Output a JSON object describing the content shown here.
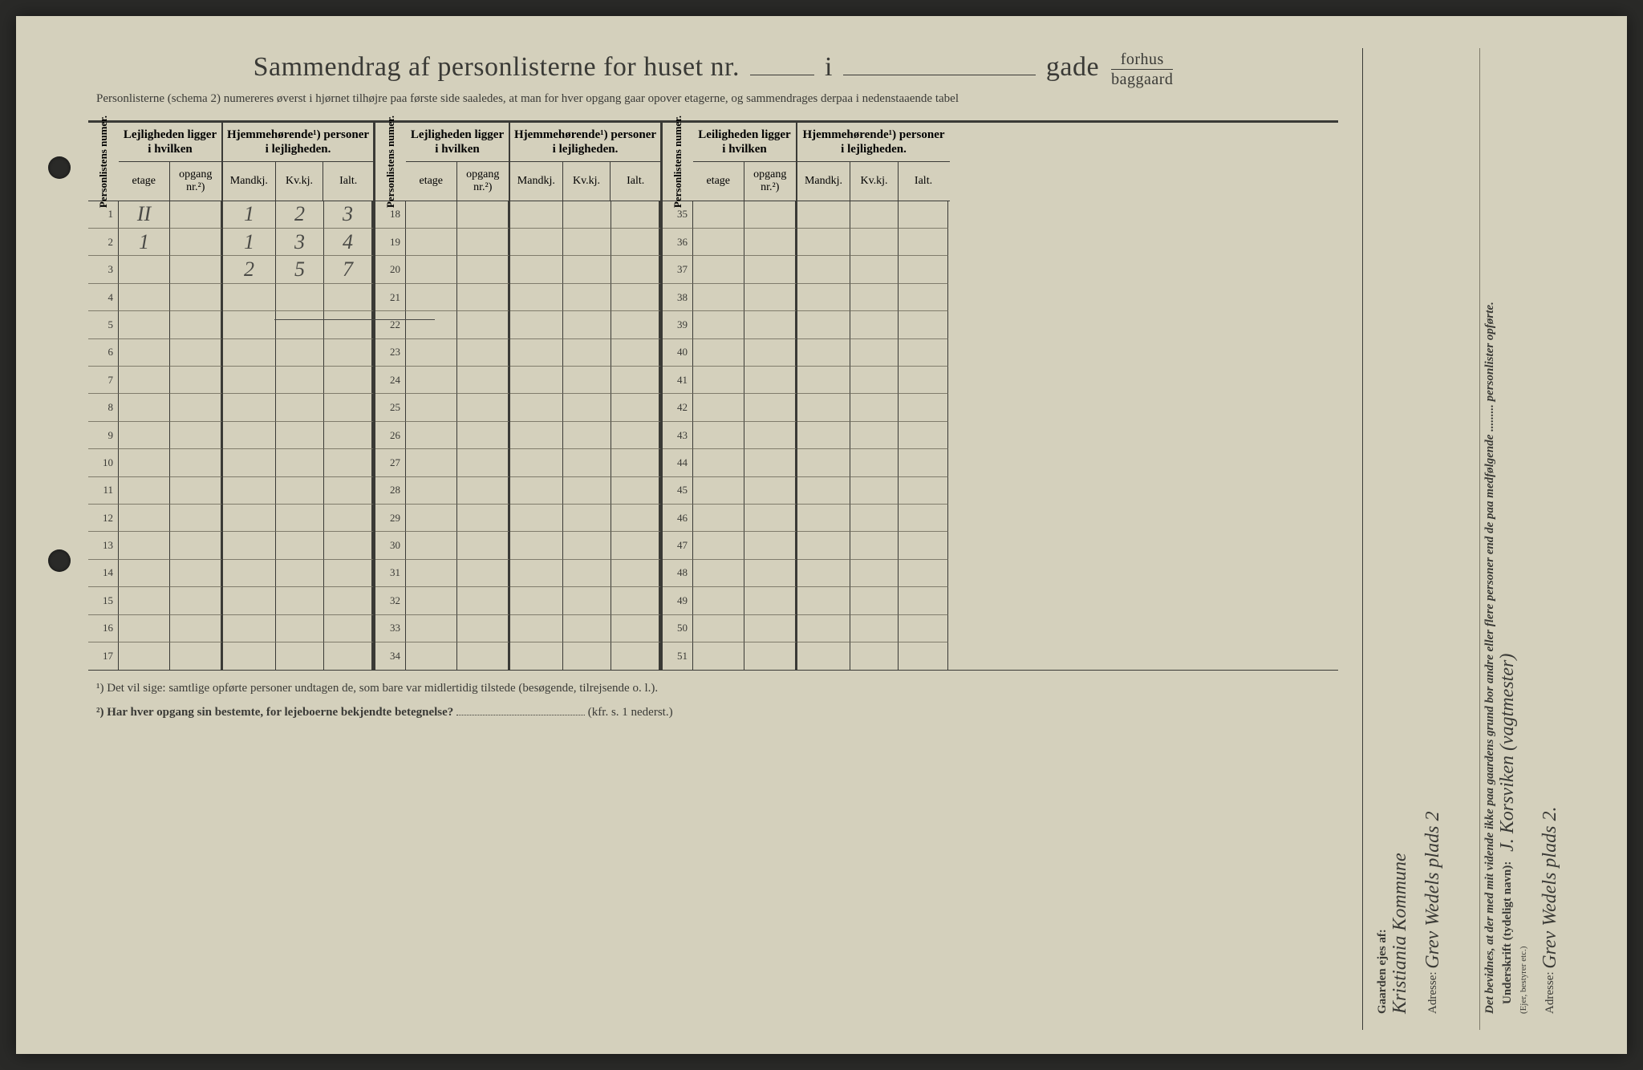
{
  "title": {
    "main": "Sammendrag af personlisterne for huset nr.",
    "conj": "i",
    "street_label": "gade",
    "fraction_top": "forhus",
    "fraction_bottom": "baggaard"
  },
  "subtitle": "Personlisterne (schema 2) numereres øverst i hjørnet tilhøjre paa første side saaledes, at man for hver opgang gaar opover etagerne, og sammendrages derpaa i nedenstaaende tabel",
  "headers": {
    "num": "Personlistens numer.",
    "lej": "Lejligheden ligger i hvilken",
    "lei": "Leiligheden ligger i hvilken",
    "hjem": "Hjemmehørende¹) personer i lejligheden.",
    "etage": "etage",
    "opgang": "opgang nr.²)",
    "mandkj": "Mandkj.",
    "kvkj": "Kv.kj.",
    "ialt": "Ialt."
  },
  "rows": {
    "block1": [
      {
        "n": "1",
        "etage": "II",
        "m": "1",
        "k": "2",
        "i": "3"
      },
      {
        "n": "2",
        "etage": "1",
        "m": "1",
        "k": "3",
        "i": "4"
      },
      {
        "n": "3",
        "m": "2",
        "k": "5",
        "i": "7"
      },
      {
        "n": "4"
      },
      {
        "n": "5"
      },
      {
        "n": "6"
      },
      {
        "n": "7"
      },
      {
        "n": "8"
      },
      {
        "n": "9"
      },
      {
        "n": "10"
      },
      {
        "n": "11"
      },
      {
        "n": "12"
      },
      {
        "n": "13"
      },
      {
        "n": "14"
      },
      {
        "n": "15"
      },
      {
        "n": "16"
      },
      {
        "n": "17"
      }
    ],
    "block2": [
      {
        "n": "18"
      },
      {
        "n": "19"
      },
      {
        "n": "20"
      },
      {
        "n": "21"
      },
      {
        "n": "22"
      },
      {
        "n": "23"
      },
      {
        "n": "24"
      },
      {
        "n": "25"
      },
      {
        "n": "26"
      },
      {
        "n": "27"
      },
      {
        "n": "28"
      },
      {
        "n": "29"
      },
      {
        "n": "30"
      },
      {
        "n": "31"
      },
      {
        "n": "32"
      },
      {
        "n": "33"
      },
      {
        "n": "34"
      }
    ],
    "block3": [
      {
        "n": "35"
      },
      {
        "n": "36"
      },
      {
        "n": "37"
      },
      {
        "n": "38"
      },
      {
        "n": "39"
      },
      {
        "n": "40"
      },
      {
        "n": "41"
      },
      {
        "n": "42"
      },
      {
        "n": "43"
      },
      {
        "n": "44"
      },
      {
        "n": "45"
      },
      {
        "n": "46"
      },
      {
        "n": "47"
      },
      {
        "n": "48"
      },
      {
        "n": "49"
      },
      {
        "n": "50"
      },
      {
        "n": "51"
      }
    ]
  },
  "footnotes": {
    "f1": "¹)   Det vil sige: samtlige opførte personer undtagen de, som bare var midlertidig tilstede (besøgende, tilrejsende o. l.).",
    "f2_a": "²)   Har hver opgang sin bestemte, for lejeboerne bekjendte betegnelse?",
    "f2_b": "(kfr. s. 1 nederst.)"
  },
  "sidebar": {
    "attest": "Det bevidnes, at der med mit vidende ikke paa gaardens grund bor andre eller flere personer end de paa medfølgende ......... personlister opførte.",
    "underskrift_label": "Underskrift (tydeligt navn):",
    "underskrift_sub": "(Ejer, bestyrer etc.)",
    "signature": "J. Korsviken (vagtmester)",
    "adresse_label": "Adresse:",
    "adresse_value": "Grev Wedels plads 2.",
    "owner_label": "Gaarden ejes af:",
    "owner_value": "Kristiania Kommune",
    "owner_adresse_label": "Adresse:",
    "owner_adresse_value": "Grev Wedels plads 2"
  },
  "colors": {
    "paper": "#d4d0bc",
    "ink": "#3a3a36",
    "handwriting": "#4a4a46",
    "rule_light": "#807c6c",
    "background": "#2a2a28"
  }
}
